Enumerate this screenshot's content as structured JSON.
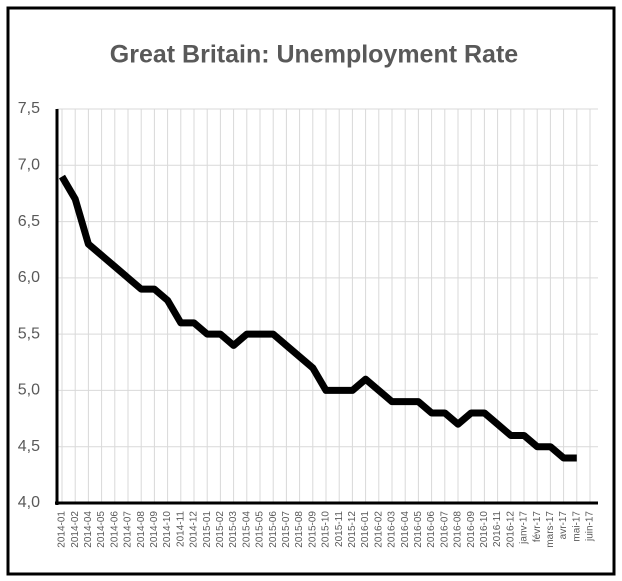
{
  "chart_data": {
    "type": "line",
    "title": "Great Britain: Unemployment Rate",
    "categories": [
      "2014-01",
      "2014-02",
      "2014-04",
      "2014-05",
      "2014-06",
      "2014-07",
      "2014-08",
      "2014-09",
      "2014-10",
      "2014-11",
      "2014-12",
      "2015-01",
      "2015-02",
      "2015-03",
      "2015-04",
      "2015-05",
      "2015-06",
      "2015-07",
      "2015-08",
      "2015-09",
      "2015-10",
      "2015-11",
      "2015-12",
      "2016-01",
      "2016-02",
      "2016-03",
      "2016-04",
      "2016-05",
      "2016-06",
      "2016-07",
      "2016-08",
      "2016-09",
      "2016-10",
      "2016-11",
      "2016-12",
      "janv-17",
      "févr-17",
      "mars-17",
      "avr-17",
      "mai-17",
      "juin-17"
    ],
    "values": [
      6.9,
      6.7,
      6.3,
      6.2,
      6.1,
      6.0,
      5.9,
      5.9,
      5.8,
      5.6,
      5.6,
      5.5,
      5.5,
      5.4,
      5.5,
      5.5,
      5.5,
      5.4,
      5.3,
      5.2,
      5.0,
      5.0,
      5.0,
      5.1,
      5.0,
      4.9,
      4.9,
      4.9,
      4.8,
      4.8,
      4.7,
      4.8,
      4.8,
      4.7,
      4.6,
      4.6,
      4.5,
      4.5,
      4.4,
      4.4,
      null
    ],
    "color": "#000000",
    "ylim": [
      4.0,
      7.5
    ],
    "yticks": [
      {
        "value": 4.0,
        "label": "4,0"
      },
      {
        "value": 4.5,
        "label": "4,5"
      },
      {
        "value": 5.0,
        "label": "5,0"
      },
      {
        "value": 5.5,
        "label": "5,5"
      },
      {
        "value": 6.0,
        "label": "6,0"
      },
      {
        "value": 6.5,
        "label": "6,5"
      },
      {
        "value": 7.0,
        "label": "7,0"
      },
      {
        "value": 7.5,
        "label": "7,5"
      }
    ],
    "grid": true
  }
}
